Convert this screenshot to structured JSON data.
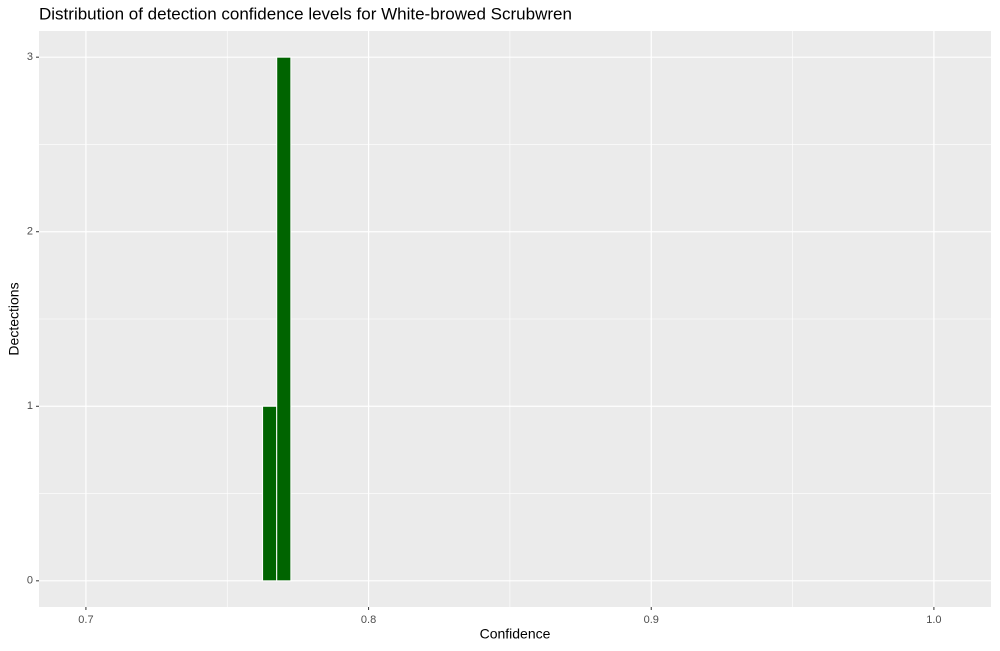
{
  "chart_data": {
    "type": "histogram",
    "title": "Distribution of detection confidence levels for White-browed Scrubwren",
    "x_label": "Confidence",
    "y_label": "Dectections",
    "bins": [
      0.7625,
      0.7675,
      0.7725
    ],
    "values": [
      1,
      3
    ],
    "color": "#006400",
    "edge_color": "#ffffff",
    "xlim": [
      0.6834,
      1.0202
    ],
    "xticks": [
      0.7,
      0.8,
      0.9,
      {
        "value": 1.0,
        "label": "1.0"
      }
    ],
    "ylim": [
      -0.15,
      3.15
    ],
    "yticks": [
      0,
      1,
      2,
      3
    ],
    "grid": true,
    "minor_grid": true,
    "panel_color": "#ebebeb"
  }
}
